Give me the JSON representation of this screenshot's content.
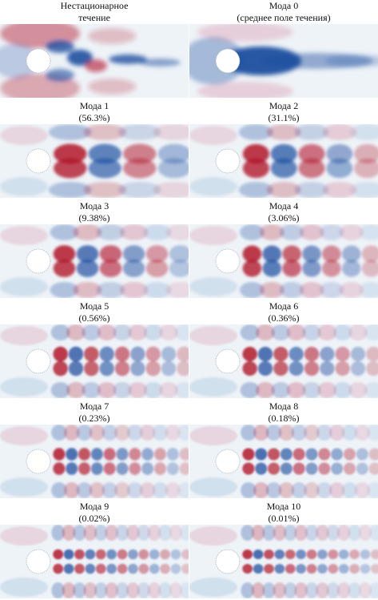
{
  "panels": [
    {
      "id": "unsteady",
      "caption": [
        "Нестационарное",
        "течение"
      ],
      "kind": "unsteady"
    },
    {
      "id": "mode-0",
      "caption": [
        "Мода 0",
        "(среднее поле течения)"
      ],
      "kind": "mean"
    },
    {
      "id": "mode-1",
      "caption": [
        "Мода 1",
        "(56.3%)"
      ],
      "kind": "mode",
      "k": 1
    },
    {
      "id": "mode-2",
      "caption": [
        "Мода 2",
        "(31.1%)"
      ],
      "kind": "mode",
      "k": 1.2
    },
    {
      "id": "mode-3",
      "caption": [
        "Мода 3",
        "(9.38%)"
      ],
      "kind": "mode",
      "k": 2
    },
    {
      "id": "mode-4",
      "caption": [
        "Мода 4",
        "(3.06%)"
      ],
      "kind": "mode",
      "k": 2.2
    },
    {
      "id": "mode-5",
      "caption": [
        "Мода 5",
        "(0.56%)"
      ],
      "kind": "mode",
      "k": 3
    },
    {
      "id": "mode-6",
      "caption": [
        "Мода 6",
        "(0.36%)"
      ],
      "kind": "mode",
      "k": 3.2
    },
    {
      "id": "mode-7",
      "caption": [
        "Мода 7",
        "(0.23%)"
      ],
      "kind": "mode",
      "k": 4
    },
    {
      "id": "mode-8",
      "caption": [
        "Мода 8",
        "(0.18%)"
      ],
      "kind": "mode",
      "k": 4.2
    },
    {
      "id": "mode-9",
      "caption": [
        "Мода 9",
        "(0.02%)"
      ],
      "kind": "mode",
      "k": 5
    },
    {
      "id": "mode-10",
      "caption": [
        "Мода 10",
        "(0.01%)"
      ],
      "kind": "mode",
      "k": 5.2
    }
  ],
  "colors": {
    "positive": "#b2182b",
    "negative": "#1f4fa0",
    "neutral": "#eef3f8",
    "cylinder": "#ffffff"
  }
}
